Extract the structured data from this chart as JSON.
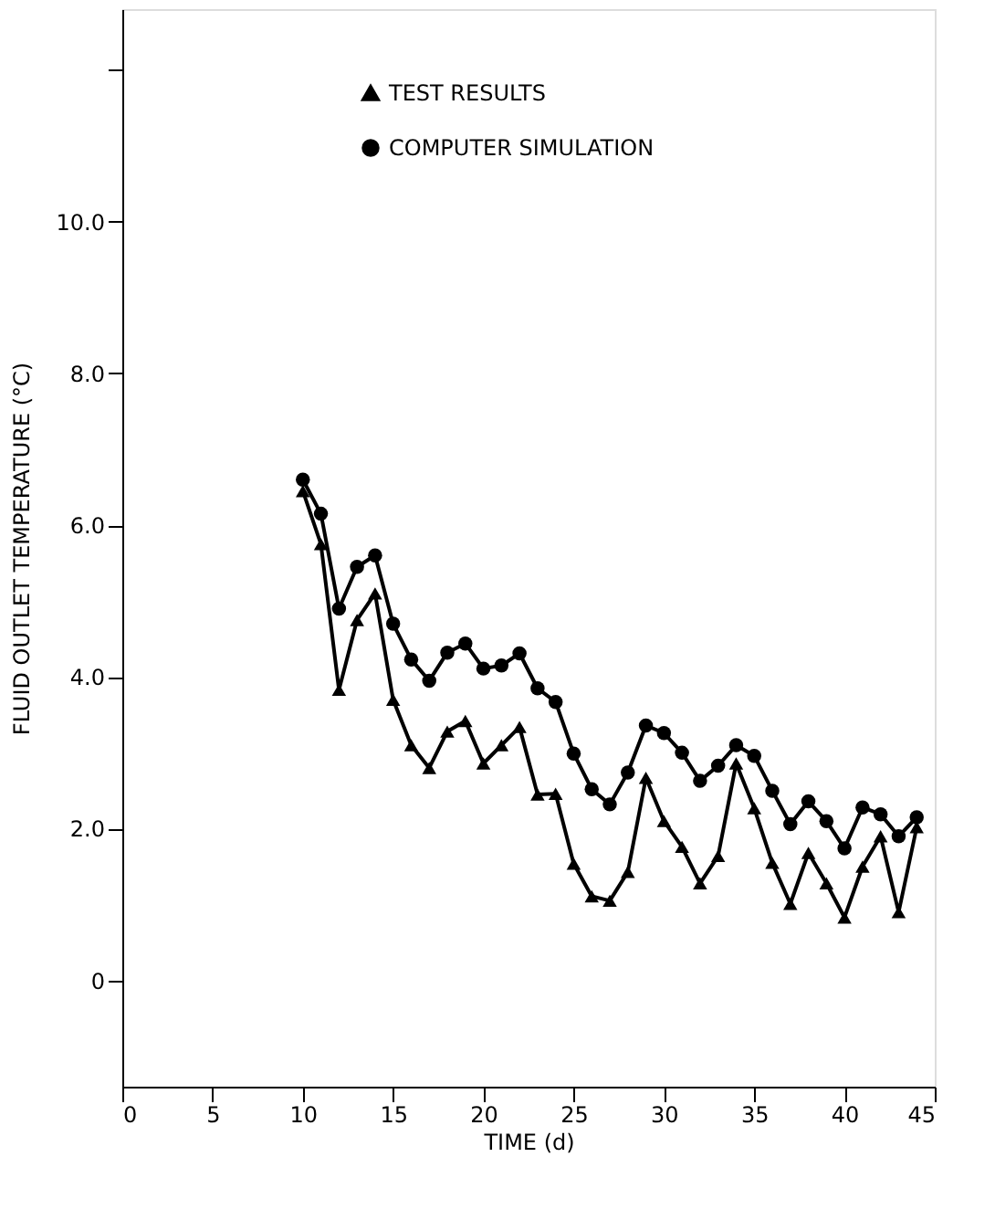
{
  "chart_data": {
    "type": "line",
    "xlabel": "TIME (d)",
    "ylabel": "FLUID OUTLET TEMPERATURE (°C)",
    "xlim": [
      0,
      45
    ],
    "xticks": [
      0,
      5,
      10,
      15,
      20,
      25,
      30,
      35,
      40,
      45
    ],
    "ylim": [
      -1.4,
      12.8
    ],
    "yticks": [
      0,
      {
        "value": 2,
        "label": "2.0"
      },
      {
        "value": 4,
        "label": "4.0"
      },
      {
        "value": 6,
        "label": "6.0"
      },
      {
        "value": 8,
        "label": "8.0"
      },
      {
        "value": 10,
        "label": "10.0"
      },
      {
        "value": 12,
        "label": null
      }
    ],
    "grid": false,
    "legend": "top",
    "line_style": "solid",
    "x": [
      10,
      11,
      12,
      13,
      14,
      15,
      16,
      17,
      18,
      19,
      20,
      21,
      22,
      23,
      24,
      25,
      26,
      27,
      28,
      29,
      30,
      31,
      32,
      33,
      34,
      35,
      36,
      37,
      38,
      39,
      40,
      41,
      42,
      43,
      44
    ],
    "series": [
      {
        "name": "TEST RESULTS",
        "color": "#000000",
        "marker": "triangle",
        "values": [
          6.45,
          5.75,
          3.83,
          4.75,
          5.1,
          3.7,
          3.1,
          2.8,
          3.28,
          3.42,
          2.86,
          3.1,
          3.34,
          2.45,
          2.46,
          1.54,
          1.11,
          1.05,
          1.43,
          2.67,
          2.1,
          1.76,
          1.28,
          1.64,
          2.86,
          2.27,
          1.55,
          1.01,
          1.68,
          1.28,
          0.83,
          1.5,
          1.9,
          0.9,
          2.02
        ]
      },
      {
        "name": "COMPUTER SIMULATION",
        "color": "#000000",
        "marker": "circle",
        "values": [
          6.6,
          6.15,
          4.9,
          5.45,
          5.6,
          4.7,
          4.23,
          3.95,
          4.32,
          4.44,
          4.11,
          4.15,
          4.31,
          3.85,
          3.67,
          2.99,
          2.52,
          2.32,
          2.74,
          3.36,
          3.26,
          3.0,
          2.63,
          2.83,
          3.1,
          2.96,
          2.5,
          2.06,
          2.36,
          2.1,
          1.74,
          2.28,
          2.19,
          1.9,
          2.15
        ]
      }
    ]
  }
}
